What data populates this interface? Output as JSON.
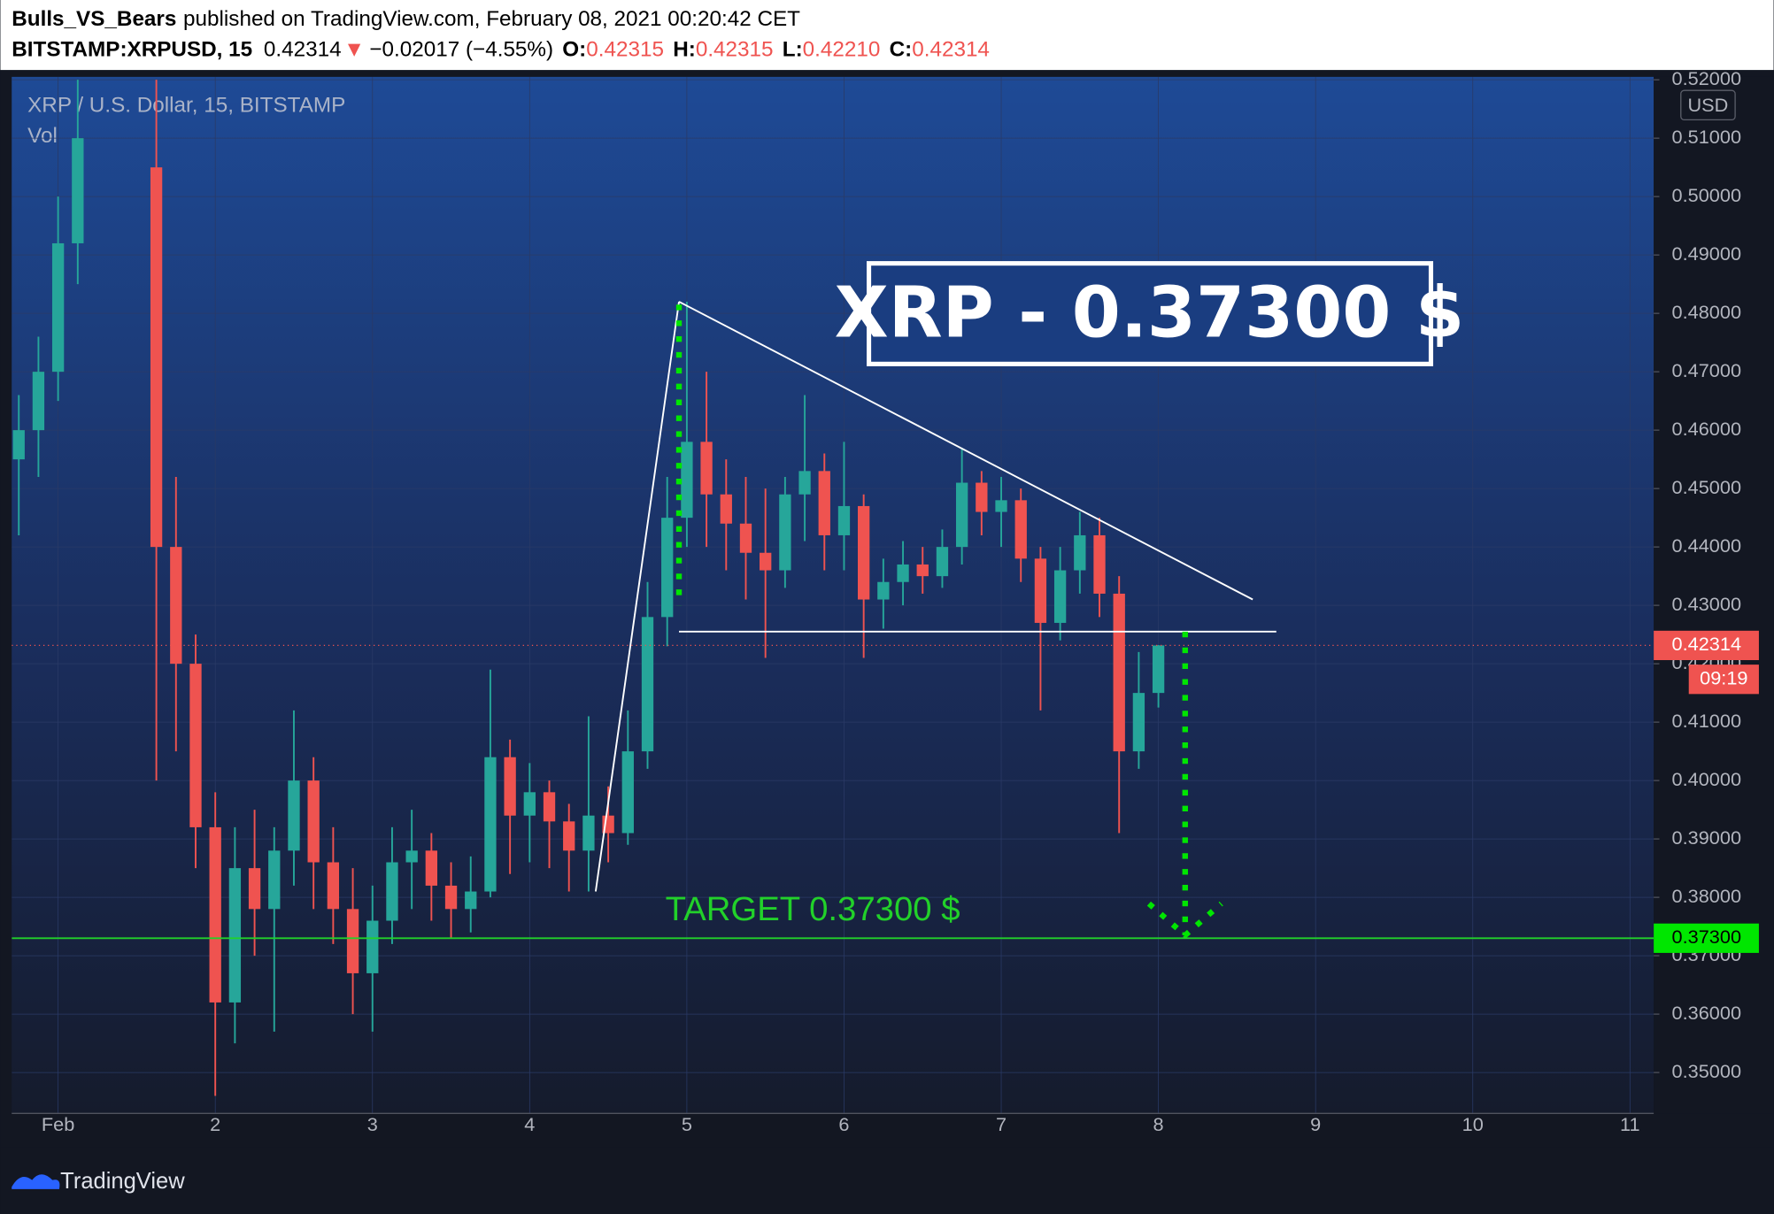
{
  "header": {
    "publisher": "Bulls_VS_Bears",
    "published": "published on TradingView.com, February 08, 2021 00:20:42 CET",
    "symbol": "BITSTAMP:XRPUSD, 15",
    "last": "0.42314",
    "arrow": "▼",
    "change": "−0.02017 (−4.55%)",
    "o_label": "O:",
    "o": "0.42315",
    "h_label": "H:",
    "h": "0.42315",
    "l_label": "L:",
    "l": "0.42210",
    "c_label": "C:",
    "c": "0.42314"
  },
  "chart_data": {
    "type": "candlestick",
    "title": "XRP / U.S. Dollar, 15, BITSTAMP",
    "volume_label": "Vol",
    "currency": "USD",
    "annotation": "XRP - 0.37300 $",
    "target_text": "TARGET 0.37300 $",
    "last_price": {
      "value": 0.42314,
      "label": "0.42314"
    },
    "countdown": "09:19",
    "target_price": {
      "value": 0.373,
      "label": "0.37300"
    },
    "up_color": "#26a69a",
    "down_color": "#ef5350",
    "x": [
      0.75,
      0.875,
      1.0,
      1.125,
      1.625,
      1.75,
      1.875,
      2.0,
      2.125,
      2.25,
      2.375,
      2.5,
      2.625,
      2.75,
      2.875,
      3.0,
      3.125,
      3.25,
      3.375,
      3.5,
      3.625,
      3.75,
      3.875,
      4.0,
      4.125,
      4.25,
      4.375,
      4.5,
      4.625,
      4.75,
      4.875,
      5.0,
      5.125,
      5.25,
      5.375,
      5.5,
      5.625,
      5.75,
      5.875,
      6.0,
      6.125,
      6.25,
      6.375,
      6.5,
      6.625,
      6.75,
      6.875,
      7.0,
      7.125,
      7.25,
      7.375,
      7.5,
      7.625,
      7.75,
      7.875,
      8.0
    ],
    "open": [
      0.455,
      0.46,
      0.47,
      0.492,
      0.505,
      0.44,
      0.42,
      0.392,
      0.362,
      0.385,
      0.378,
      0.388,
      0.4,
      0.386,
      0.378,
      0.367,
      0.376,
      0.386,
      0.388,
      0.382,
      0.378,
      0.381,
      0.404,
      0.394,
      0.398,
      0.393,
      0.388,
      0.394,
      0.391,
      0.405,
      0.428,
      0.445,
      0.458,
      0.449,
      0.444,
      0.439,
      0.436,
      0.449,
      0.453,
      0.442,
      0.447,
      0.431,
      0.434,
      0.437,
      0.435,
      0.44,
      0.451,
      0.446,
      0.448,
      0.438,
      0.427,
      0.436,
      0.442,
      0.432,
      0.405,
      0.415
    ],
    "high": [
      0.466,
      0.476,
      0.5,
      0.52,
      0.52,
      0.452,
      0.425,
      0.398,
      0.392,
      0.395,
      0.392,
      0.412,
      0.404,
      0.392,
      0.385,
      0.382,
      0.392,
      0.395,
      0.391,
      0.386,
      0.387,
      0.419,
      0.407,
      0.403,
      0.4,
      0.396,
      0.411,
      0.399,
      0.412,
      0.434,
      0.452,
      0.482,
      0.47,
      0.455,
      0.452,
      0.45,
      0.452,
      0.466,
      0.456,
      0.458,
      0.449,
      0.438,
      0.441,
      0.44,
      0.443,
      0.457,
      0.453,
      0.452,
      0.45,
      0.44,
      0.44,
      0.446,
      0.445,
      0.435,
      0.422,
      0.4232
    ],
    "low": [
      0.442,
      0.452,
      0.465,
      0.485,
      0.4,
      0.405,
      0.385,
      0.346,
      0.355,
      0.37,
      0.357,
      0.382,
      0.378,
      0.372,
      0.36,
      0.357,
      0.372,
      0.378,
      0.376,
      0.373,
      0.374,
      0.38,
      0.384,
      0.386,
      0.385,
      0.381,
      0.381,
      0.386,
      0.389,
      0.402,
      0.423,
      0.44,
      0.44,
      0.436,
      0.431,
      0.421,
      0.433,
      0.441,
      0.436,
      0.436,
      0.421,
      0.426,
      0.43,
      0.432,
      0.433,
      0.437,
      0.442,
      0.44,
      0.434,
      0.412,
      0.424,
      0.432,
      0.428,
      0.391,
      0.402,
      0.4125
    ],
    "close": [
      0.46,
      0.47,
      0.492,
      0.51,
      0.44,
      0.42,
      0.392,
      0.362,
      0.385,
      0.378,
      0.388,
      0.4,
      0.386,
      0.378,
      0.367,
      0.376,
      0.386,
      0.388,
      0.382,
      0.378,
      0.381,
      0.404,
      0.394,
      0.398,
      0.393,
      0.388,
      0.394,
      0.391,
      0.405,
      0.428,
      0.445,
      0.458,
      0.449,
      0.444,
      0.439,
      0.436,
      0.449,
      0.453,
      0.442,
      0.447,
      0.431,
      0.434,
      0.437,
      0.435,
      0.44,
      0.451,
      0.446,
      0.448,
      0.438,
      0.427,
      0.436,
      0.442,
      0.432,
      0.405,
      0.415,
      0.42314
    ],
    "xlim": [
      0.705,
      11.151
    ],
    "ylim": [
      0.343,
      0.5205
    ],
    "xticks": [
      {
        "value": 1,
        "label": "Feb"
      },
      2,
      3,
      4,
      5,
      6,
      7,
      8,
      9,
      10,
      11
    ],
    "yticks": [
      {
        "value": 0.35,
        "label": "0.35000"
      },
      {
        "value": 0.36,
        "label": "0.36000"
      },
      {
        "value": 0.37,
        "label": "0.37000"
      },
      {
        "value": 0.38,
        "label": "0.38000"
      },
      {
        "value": 0.39,
        "label": "0.39000"
      },
      {
        "value": 0.4,
        "label": "0.40000"
      },
      {
        "value": 0.41,
        "label": "0.41000"
      },
      {
        "value": 0.42,
        "label": "0.42000"
      },
      {
        "value": 0.43,
        "label": "0.43000"
      },
      {
        "value": 0.44,
        "label": "0.44000"
      },
      {
        "value": 0.45,
        "label": "0.45000"
      },
      {
        "value": 0.46,
        "label": "0.46000"
      },
      {
        "value": 0.47,
        "label": "0.47000"
      },
      {
        "value": 0.48,
        "label": "0.48000"
      },
      {
        "value": 0.49,
        "label": "0.49000"
      },
      {
        "value": 0.5,
        "label": "0.50000"
      },
      {
        "value": 0.51,
        "label": "0.51000"
      },
      {
        "value": 0.52,
        "label": "0.52000"
      }
    ],
    "trendlines": [
      [
        4.42,
        0.381,
        4.95,
        0.482
      ],
      [
        4.95,
        0.482,
        8.6,
        0.431
      ],
      [
        4.95,
        0.4255,
        8.75,
        0.4255
      ]
    ],
    "guides": [
      [
        4.95,
        0.4815,
        4.95,
        0.43
      ],
      [
        8.17,
        0.4255,
        8.17,
        0.3735
      ]
    ]
  },
  "footer": {
    "brand": "TradingView"
  }
}
